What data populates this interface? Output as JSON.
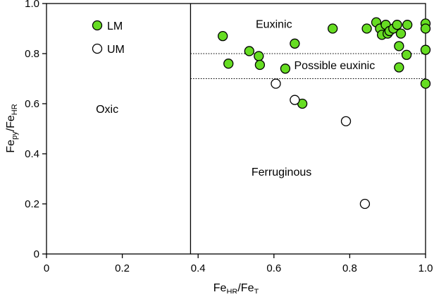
{
  "chart_data": {
    "type": "scatter",
    "x_axis": {
      "label_main": "Fe",
      "label_sub": "HR",
      "label_main2": "/Fe",
      "label_sub2": "T",
      "range": [
        0,
        1.0
      ],
      "ticks": [
        0,
        0.2,
        0.4,
        0.6,
        0.8,
        1.0
      ],
      "tick_labels": [
        "0",
        "0.2",
        "0.4",
        "0.6",
        "0.8",
        "1.0"
      ]
    },
    "y_axis": {
      "label_main": "Fe",
      "label_sub": "py",
      "label_main2": "/Fe",
      "label_sub2": "HR",
      "range": [
        0,
        1.0
      ],
      "ticks": [
        0,
        0.2,
        0.4,
        0.6,
        0.8,
        1.0
      ],
      "tick_labels": [
        "0",
        "0.2",
        "0.4",
        "0.6",
        "0.8",
        "1.0"
      ]
    },
    "grid": false,
    "legend_position": "top-left",
    "reference_lines": {
      "vertical_x": 0.38,
      "dotted_y": [
        0.8,
        0.7
      ]
    },
    "region_labels": [
      {
        "text": "Oxic",
        "x": 0.16,
        "y": 0.58
      },
      {
        "text": "Euxinic",
        "x": 0.6,
        "y": 0.92
      },
      {
        "text": "Possible euxinic",
        "x": 0.76,
        "y": 0.755
      },
      {
        "text": "Ferruginous",
        "x": 0.62,
        "y": 0.33
      }
    ],
    "series": [
      {
        "name": "LM",
        "color": "#66dd22",
        "points": [
          [
            0.465,
            0.87
          ],
          [
            0.48,
            0.76
          ],
          [
            0.535,
            0.81
          ],
          [
            0.56,
            0.79
          ],
          [
            0.563,
            0.755
          ],
          [
            0.63,
            0.74
          ],
          [
            0.655,
            0.84
          ],
          [
            0.675,
            0.6
          ],
          [
            0.755,
            0.9
          ],
          [
            0.845,
            0.9
          ],
          [
            0.87,
            0.925
          ],
          [
            0.88,
            0.9
          ],
          [
            0.885,
            0.875
          ],
          [
            0.895,
            0.915
          ],
          [
            0.9,
            0.88
          ],
          [
            0.905,
            0.89
          ],
          [
            0.915,
            0.9
          ],
          [
            0.925,
            0.915
          ],
          [
            0.93,
            0.83
          ],
          [
            0.935,
            0.88
          ],
          [
            0.93,
            0.745
          ],
          [
            0.95,
            0.795
          ],
          [
            0.952,
            0.915
          ],
          [
            1.0,
            0.92
          ],
          [
            1.0,
            0.9
          ],
          [
            1.0,
            0.815
          ],
          [
            1.0,
            0.68
          ]
        ]
      },
      {
        "name": "UM",
        "color": "#ffffff",
        "points": [
          [
            0.605,
            0.68
          ],
          [
            0.655,
            0.615
          ],
          [
            0.79,
            0.53
          ],
          [
            0.84,
            0.2
          ]
        ]
      }
    ]
  }
}
